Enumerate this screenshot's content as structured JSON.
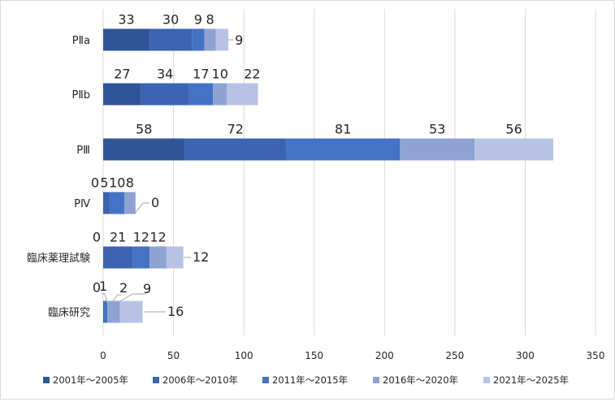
{
  "chart_data": {
    "type": "bar",
    "orientation": "horizontal",
    "stacked": true,
    "categories": [
      "PⅡa",
      "PⅡb",
      "PⅢ",
      "PⅣ",
      "臨床薬理試験",
      "臨床研究"
    ],
    "series": [
      {
        "name": "2001年～2005年",
        "color": "#2f5597",
        "values": [
          33,
          27,
          58,
          0,
          0,
          0
        ]
      },
      {
        "name": "2006年～2010年",
        "color": "#3a64b0",
        "values": [
          30,
          34,
          72,
          5,
          21,
          1
        ]
      },
      {
        "name": "2011年～2015年",
        "color": "#4472c4",
        "values": [
          9,
          17,
          81,
          10,
          12,
          2
        ]
      },
      {
        "name": "2016年～2020年",
        "color": "#8ea3d4",
        "values": [
          8,
          10,
          53,
          8,
          12,
          9
        ]
      },
      {
        "name": "2021年～2025年",
        "color": "#b8c3e3",
        "values": [
          9,
          22,
          56,
          0,
          12,
          16
        ]
      }
    ],
    "xlim": [
      0,
      350
    ],
    "xticks": [
      0,
      50,
      100,
      150,
      200,
      250,
      300,
      350
    ],
    "grid": true,
    "legend": "bottom",
    "title": "",
    "xlabel": "",
    "ylabel": ""
  }
}
